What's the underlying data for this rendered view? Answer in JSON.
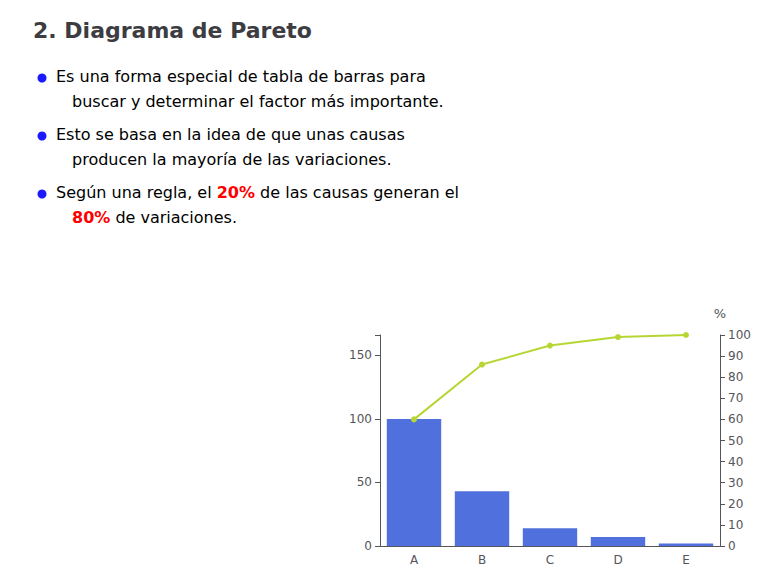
{
  "chart_data": {
    "type": "bar",
    "title": "2. Diagrama de Pareto",
    "annotations": [
      [
        [
          "Es una forma especial de tabla de barras para"
        ],
        [
          "buscar y determinar el factor más importante."
        ]
      ],
      [
        [
          "Esto se basa en la idea de que unas causas"
        ],
        [
          "producen la mayoría de las variaciones."
        ]
      ],
      [
        [
          "Según una regla, el ",
          {
            "text": "20%",
            "color": "#FF0000"
          },
          " de las causas generan el"
        ],
        [
          {
            "text": "80%",
            "color": "#FF0000"
          },
          " de variaciones."
        ]
      ]
    ],
    "categories": [
      "A",
      "B",
      "C",
      "D",
      "E"
    ],
    "series": [
      {
        "type": "bar",
        "values": [
          100,
          43,
          14,
          7,
          2
        ]
      },
      {
        "type": "line",
        "axis": "y2",
        "marker": "circle",
        "values": [
          60,
          86,
          95,
          99,
          100
        ]
      }
    ],
    "ylim": [
      0,
      166
    ],
    "yticks": [
      0,
      50,
      100,
      150
    ],
    "y2lim": [
      0,
      100
    ],
    "y2ticks": [
      0,
      10,
      20,
      30,
      40,
      50,
      60,
      70,
      80,
      90,
      100
    ],
    "y2label": "%",
    "grid": false
  }
}
